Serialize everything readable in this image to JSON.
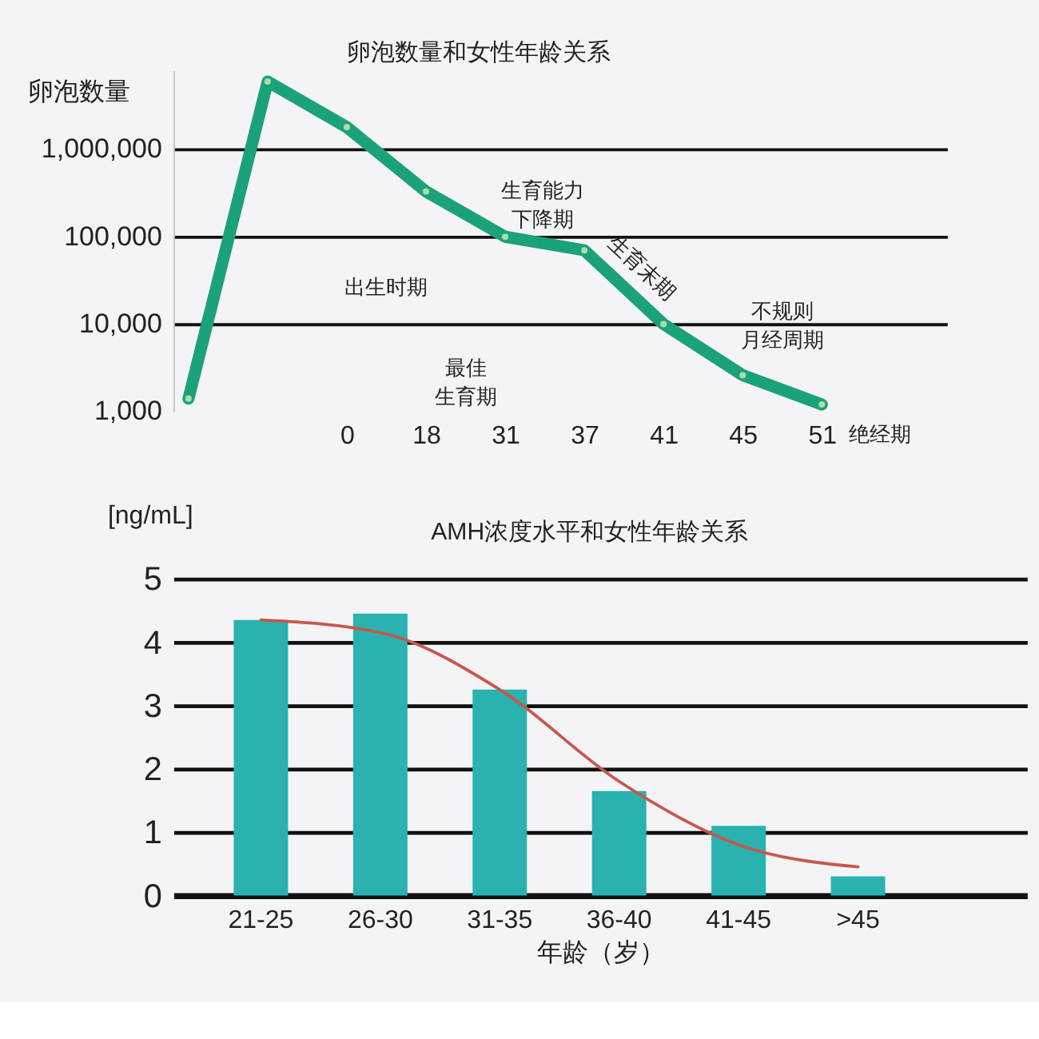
{
  "chart_data": [
    {
      "type": "line",
      "title": "卵泡数量和女性年龄关系",
      "ylabel": "卵泡数量",
      "categories": [
        null,
        null,
        "0",
        "18",
        "31",
        "37",
        "41",
        "45",
        "51"
      ],
      "series": [
        {
          "color": "#1ba27a",
          "values": [
            1400,
            6000000,
            1800000,
            330000,
            100000,
            70000,
            10000,
            2600,
            1200
          ]
        }
      ],
      "ylim": [
        1000,
        8000000
      ],
      "yticks": [
        {
          "value": 1000,
          "label": "1,000"
        },
        {
          "value": 10000,
          "label": "10,000"
        },
        {
          "value": 100000,
          "label": "100,000"
        },
        {
          "value": 1000000,
          "label": "1,000,000"
        }
      ],
      "log": "y",
      "grid": "y",
      "marker": "circle",
      "line_style": "solid",
      "annotations": [
        "出生时期",
        "最佳生育期",
        "生育能力下降期",
        "生育末期",
        "不规则月经周期",
        "绝经期"
      ]
    },
    {
      "type": "bar",
      "title": "AMH浓度水平和女性年龄关系",
      "xlabel": "年龄（岁）",
      "ylabel": "[ng/mL]",
      "categories": [
        "21-25",
        "26-30",
        "31-35",
        "36-40",
        "41-45",
        ">45"
      ],
      "series": [
        {
          "color": "#2ab2b0",
          "values": [
            4.35,
            4.45,
            3.25,
            1.65,
            1.1,
            0.3
          ]
        },
        {
          "type": "line",
          "color": "#c8574b",
          "line_style": "solid",
          "values": [
            4.35,
            4.15,
            3.25,
            1.8,
            0.8,
            0.45
          ]
        }
      ],
      "ylim": [
        0,
        5
      ],
      "yticks": [
        0,
        1,
        2,
        3,
        4,
        5
      ],
      "grid": "y"
    }
  ]
}
